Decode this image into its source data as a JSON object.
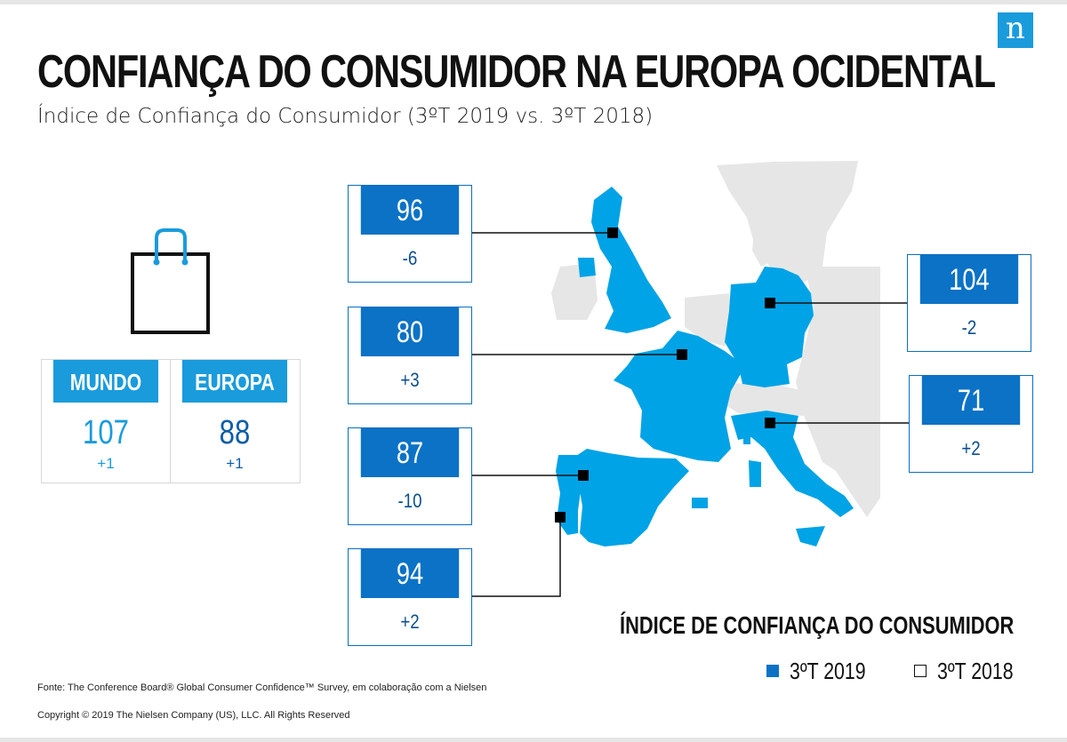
{
  "header": {
    "logo": "n",
    "title": "CONFIANÇA DO CONSUMIDOR NA EUROPA OCIDENTAL",
    "subtitle": "Índice de Confiança do Consumidor (3ºT 2019 vs. 3ºT 2018)"
  },
  "summary": {
    "world": {
      "label": "MUNDO",
      "value": "107",
      "change": "+1"
    },
    "europe": {
      "label": "EUROPA",
      "value": "88",
      "change": "+1"
    }
  },
  "countries": [
    {
      "key": "uk",
      "value": "96",
      "change": "-6"
    },
    {
      "key": "france",
      "value": "80",
      "change": "+3"
    },
    {
      "key": "spain",
      "value": "87",
      "change": "-10"
    },
    {
      "key": "portugal",
      "value": "94",
      "change": "+2"
    },
    {
      "key": "germany",
      "value": "104",
      "change": "-2"
    },
    {
      "key": "italy",
      "value": "71",
      "change": "+2"
    }
  ],
  "legend": {
    "title": "ÍNDICE DE CONFIANÇA DO CONSUMIDOR",
    "current": "3ºT 2019",
    "previous": "3ºT 2018"
  },
  "footer": {
    "source": "Fonte: The Conference Board® Global Consumer Confidence™ Survey, em colaboração com a Nielsen",
    "copyright": "Copyright © 2019 The Nielsen Company (US), LLC. All Rights Reserved"
  },
  "colors": {
    "map_highlight": "#00a3e6",
    "map_other": "#e6e6e6",
    "box_header": "#0b72c6",
    "logo": "#1a9bdc"
  }
}
